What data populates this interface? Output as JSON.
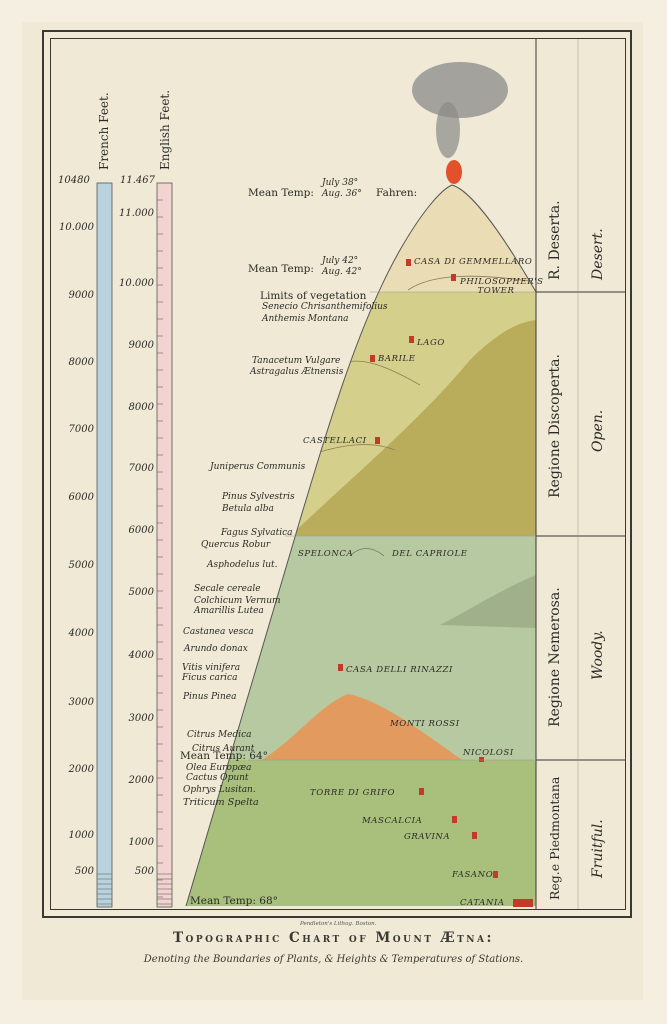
{
  "title": "Topographic Chart of Mount Ætna:",
  "subtitle": "Denoting the Boundaries of Plants, & Heights & Temperatures of Stations.",
  "engraver": "Pendleton's Lithog. Boston.",
  "axes": {
    "french": {
      "title": "French Feet.",
      "top": "10480",
      "ticks": [
        "10.000",
        "9000",
        "8000",
        "7000",
        "6000",
        "5000",
        "4000",
        "3000",
        "2000",
        "1000",
        "500"
      ]
    },
    "english": {
      "title": "English Feet.",
      "top": "11.467",
      "ticks": [
        "11.000",
        "10.000",
        "9000",
        "8000",
        "7000",
        "6000",
        "5000",
        "4000",
        "3000",
        "2000",
        "1000",
        "500"
      ]
    }
  },
  "regions": [
    {
      "name": "R. Deserta.",
      "character": "Desert."
    },
    {
      "name": "Regione Discoperta.",
      "character": "Open."
    },
    {
      "name": "Regione Nemerosa.",
      "character": "Woody."
    },
    {
      "name": "Reg.e Piedmontana",
      "character": "Fruitful."
    }
  ],
  "temperatures": {
    "summit": {
      "label": "Mean Temp:",
      "july": "July 38°",
      "aug": "Aug. 36°",
      "suffix": "Fahren:"
    },
    "upper": {
      "label": "Mean Temp:",
      "july": "July 42°",
      "aug": "Aug. 42°"
    },
    "middle": "Mean Temp: 64°",
    "base": "Mean Temp: 68°"
  },
  "plants": [
    "Limits of vegetation",
    "Senecio Chrisanthemifolius",
    "Anthemis Montana",
    "Tanacetum Vulgare",
    "Astragalus Ætnensis",
    "Juniperus Communis",
    "Pinus Sylvestris",
    "Betula alba",
    "Fagus Sylvatica",
    "Quercus Robur",
    "Asphodelus lut.",
    "Secale cereale",
    "Colchicum Vernum",
    "Amarillis Lutea",
    "Castanea vesca",
    "Arundo donax",
    "Vitis vinifera",
    "Ficus carica",
    "Pinus Pinea",
    "Citrus Medica",
    "Citrus Aurant",
    "Olea Europæa",
    "Cactus Opunt",
    "Ophrys Lusitan.",
    "Triticum Spelta"
  ],
  "stations": [
    "Casa di Gemmellaro",
    "Philosopher's Tower",
    "Lago",
    "Barile",
    "Castellaci",
    "Spelonca",
    "del Capriole",
    "Casa delli Rinazzi",
    "Monti Rossi",
    "Nicolosi",
    "Torre di Grifo",
    "Mascalcia",
    "Gravina",
    "Fasano",
    "Catania"
  ],
  "colors": {
    "desert": "#eadcb4",
    "open": "#d4cf8a",
    "open_dark": "#b9ad5c",
    "woody": "#b7c9a0",
    "fruitful": "#a9c07d",
    "monti_rossi": "#e29a5e",
    "smoke": "#8a8a88",
    "fire": "#e2512a",
    "scale_blue": "#b9d3de",
    "scale_pink": "#f2d3cf",
    "station_marker": "#c23b2a"
  }
}
